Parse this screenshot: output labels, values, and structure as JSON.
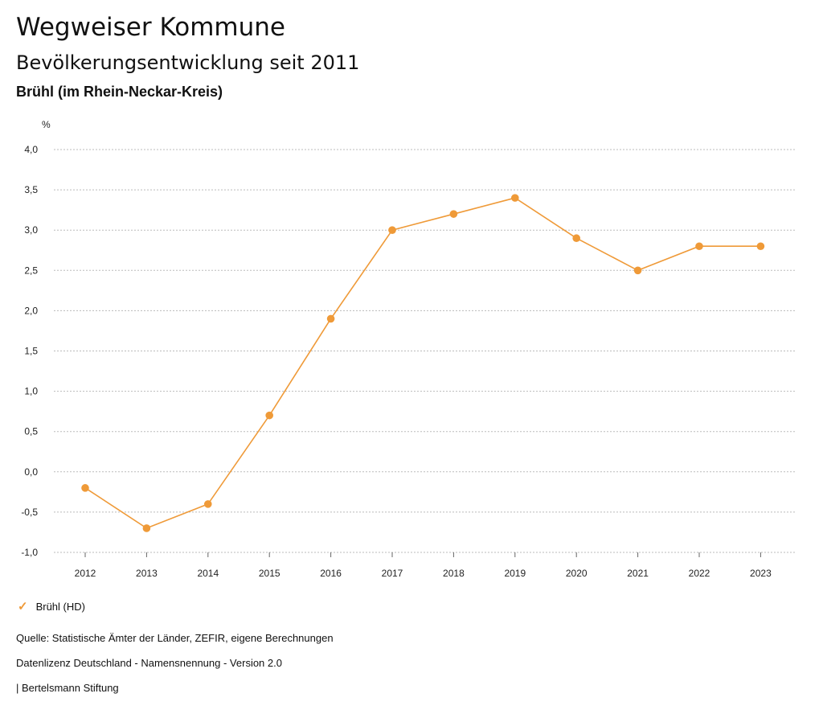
{
  "header": {
    "title": "Wegweiser Kommune",
    "subtitle": "Bevölkerungsentwicklung seit 2011",
    "region": "Brühl (im Rhein-Neckar-Kreis)"
  },
  "colors": {
    "series": "#ef9a38",
    "grid": "#bbbbbb"
  },
  "chart_data": {
    "type": "line",
    "title": "Bevölkerungsentwicklung seit 2011",
    "ylabel": "%",
    "xlabel": "",
    "ylim": [
      -1.0,
      4.0
    ],
    "yticks": [
      "-1,0",
      "-0,5",
      "0,0",
      "0,5",
      "1,0",
      "1,5",
      "2,0",
      "2,5",
      "3,0",
      "3,5",
      "4,0"
    ],
    "ytick_values": [
      -1.0,
      -0.5,
      0.0,
      0.5,
      1.0,
      1.5,
      2.0,
      2.5,
      3.0,
      3.5,
      4.0
    ],
    "categories": [
      "2012",
      "2013",
      "2014",
      "2015",
      "2016",
      "2017",
      "2018",
      "2019",
      "2020",
      "2021",
      "2022",
      "2023"
    ],
    "series": [
      {
        "name": "Brühl (HD)",
        "values": [
          -0.2,
          -0.7,
          -0.4,
          0.7,
          1.9,
          3.0,
          3.2,
          3.4,
          2.9,
          2.5,
          2.8,
          2.8
        ]
      }
    ],
    "grid": true,
    "legend": "bottom-left"
  },
  "legend": {
    "marker": "✓",
    "label": "Brühl (HD)"
  },
  "footer": {
    "source": "Quelle: Statistische Ämter der Länder, ZEFIR, eigene Berechnungen",
    "license": "Datenlizenz Deutschland - Namensnennung - Version 2.0",
    "publisher": "| Bertelsmann Stiftung"
  }
}
